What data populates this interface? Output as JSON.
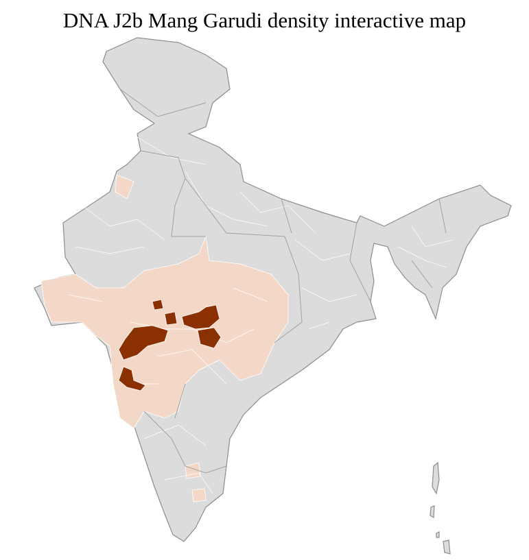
{
  "title": "DNA J2b Mang Garudi density interactive map"
}
